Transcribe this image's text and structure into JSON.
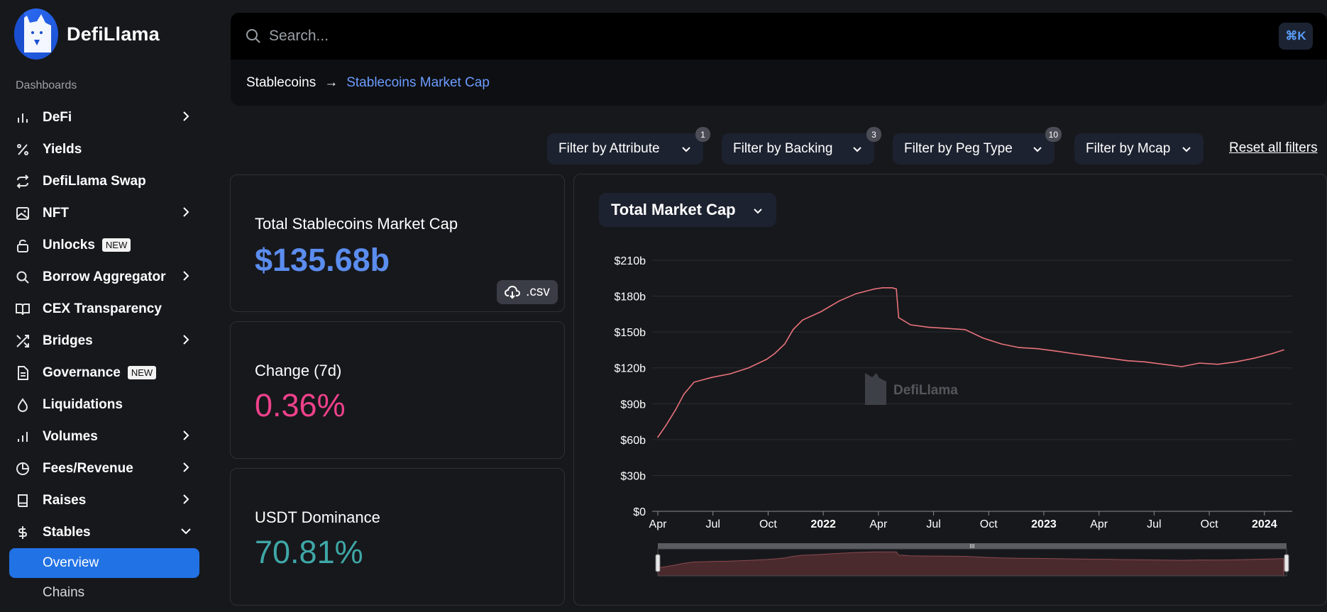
{
  "brand": {
    "name": "DefiLlama"
  },
  "sidebar": {
    "section": "Dashboards",
    "items": [
      {
        "label": "DeFi",
        "icon": "bar-chart-icon",
        "chevron": true
      },
      {
        "label": "Yields",
        "icon": "percent-icon",
        "chevron": false
      },
      {
        "label": "DefiLlama Swap",
        "icon": "swap-arrows-icon",
        "chevron": false
      },
      {
        "label": "NFT",
        "icon": "image-icon",
        "chevron": true
      },
      {
        "label": "Unlocks",
        "icon": "unlock-icon",
        "chevron": false,
        "badge": "NEW"
      },
      {
        "label": "Borrow Aggregator",
        "icon": "search-icon",
        "chevron": true
      },
      {
        "label": "CEX Transparency",
        "icon": "book-open-icon",
        "chevron": false
      },
      {
        "label": "Bridges",
        "icon": "shuffle-icon",
        "chevron": true
      },
      {
        "label": "Governance",
        "icon": "document-icon",
        "chevron": false,
        "badge": "NEW"
      },
      {
        "label": "Liquidations",
        "icon": "droplet-icon",
        "chevron": false
      },
      {
        "label": "Volumes",
        "icon": "bar-chart-icon",
        "chevron": true
      },
      {
        "label": "Fees/Revenue",
        "icon": "pie-chart-icon",
        "chevron": true
      },
      {
        "label": "Raises",
        "icon": "book-icon",
        "chevron": true
      },
      {
        "label": "Stables",
        "icon": "dollar-icon",
        "chevron": true,
        "expanded": true
      }
    ],
    "subitems": [
      {
        "label": "Overview",
        "active": true
      },
      {
        "label": "Chains",
        "active": false
      }
    ]
  },
  "search": {
    "placeholder": "Search...",
    "shortcut": "⌘K"
  },
  "breadcrumb": {
    "root": "Stablecoins",
    "arrow": "→",
    "current": "Stablecoins Market Cap"
  },
  "filters": [
    {
      "label": "Filter by Attribute",
      "count": "1"
    },
    {
      "label": "Filter by Backing",
      "count": "3"
    },
    {
      "label": "Filter by Peg Type",
      "count": "10"
    },
    {
      "label": "Filter by Mcap",
      "count": ""
    }
  ],
  "reset_label": "Reset all filters",
  "stats": {
    "mcap": {
      "label": "Total Stablecoins Market Cap",
      "value": "$135.68b",
      "color": "#5b8def",
      "csv": ".csv"
    },
    "change": {
      "label": "Change (7d)",
      "value": "0.36%",
      "color": "#f0418b"
    },
    "dominance": {
      "label": "USDT Dominance",
      "value": "70.81%",
      "color": "#3fa7a7"
    }
  },
  "chart_select": "Total Market Cap",
  "chart_data": {
    "type": "line",
    "color": "#e8727a",
    "y_ticks": [
      "$0",
      "$30b",
      "$60b",
      "$90b",
      "$120b",
      "$150b",
      "$180b",
      "$210b"
    ],
    "ylim": [
      0,
      210
    ],
    "x_ticks": [
      {
        "label": "Apr",
        "bold": false
      },
      {
        "label": "Jul",
        "bold": false
      },
      {
        "label": "Oct",
        "bold": false
      },
      {
        "label": "2022",
        "bold": true
      },
      {
        "label": "Apr",
        "bold": false
      },
      {
        "label": "Jul",
        "bold": false
      },
      {
        "label": "Oct",
        "bold": false
      },
      {
        "label": "2023",
        "bold": true
      },
      {
        "label": "Apr",
        "bold": false
      },
      {
        "label": "Jul",
        "bold": false
      },
      {
        "label": "Oct",
        "bold": false
      },
      {
        "label": "2024",
        "bold": true
      }
    ],
    "x": [
      "2021-04-01",
      "2021-04-15",
      "2021-05-01",
      "2021-05-15",
      "2021-06-01",
      "2021-07-01",
      "2021-08-01",
      "2021-09-01",
      "2021-10-01",
      "2021-10-15",
      "2021-11-01",
      "2021-11-15",
      "2021-12-01",
      "2022-01-01",
      "2022-02-01",
      "2022-03-01",
      "2022-04-01",
      "2022-04-15",
      "2022-05-01",
      "2022-05-08",
      "2022-05-12",
      "2022-06-01",
      "2022-07-01",
      "2022-08-01",
      "2022-09-01",
      "2022-10-01",
      "2022-11-01",
      "2022-12-01",
      "2023-01-01",
      "2023-02-01",
      "2023-03-01",
      "2023-04-01",
      "2023-05-01",
      "2023-06-01",
      "2023-07-01",
      "2023-08-01",
      "2023-09-01",
      "2023-10-01",
      "2023-11-01",
      "2023-12-01",
      "2024-01-01",
      "2024-02-01",
      "2024-02-20"
    ],
    "values": [
      62,
      72,
      85,
      98,
      108,
      112,
      115,
      120,
      127,
      132,
      140,
      152,
      160,
      167,
      176,
      182,
      186,
      187,
      187,
      186,
      162,
      156,
      154,
      153,
      152,
      145,
      140,
      137,
      136,
      134,
      132,
      130,
      128,
      126,
      125,
      123,
      121,
      124,
      123,
      125,
      128,
      132,
      135
    ],
    "watermark": "DefiLlama"
  }
}
